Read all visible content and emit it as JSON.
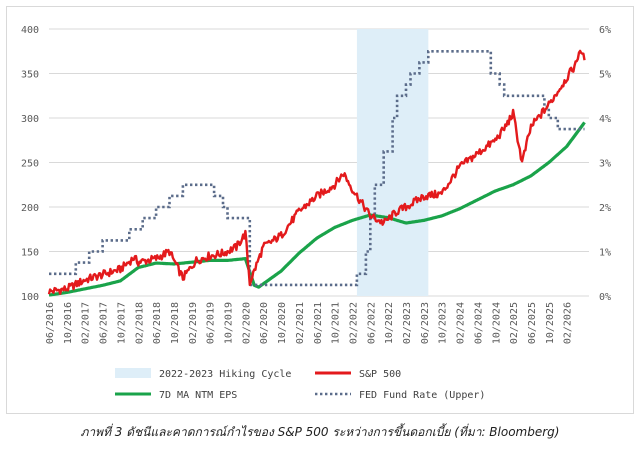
{
  "caption": "ภาพที่ 3 ดัชนีและคาดการณ์กำไรของ S&P 500 ระหว่างการขึ้นดอกเบี้ย (ที่มา: Bloomberg)",
  "chart_data": {
    "type": "line",
    "left_axis": {
      "ticks": [
        "100",
        "150",
        "200",
        "250",
        "300",
        "350",
        "400"
      ],
      "range": [
        100,
        400
      ]
    },
    "right_axis": {
      "ticks": [
        "0%",
        "1%",
        "2%",
        "3%",
        "4%",
        "5%",
        "6%"
      ],
      "range": [
        0,
        6
      ]
    },
    "x_ticks": [
      "06/2016",
      "10/2016",
      "02/2017",
      "06/2017",
      "10/2017",
      "02/2018",
      "06/2018",
      "10/2018",
      "02/2019",
      "06/2019",
      "10/2019",
      "02/2020",
      "06/2020",
      "10/2020",
      "02/2021",
      "06/2021",
      "10/2021",
      "02/2022",
      "06/2022",
      "10/2022",
      "02/2023",
      "06/2023",
      "10/2023",
      "02/2024",
      "06/2024",
      "10/2024",
      "02/2025",
      "06/2025",
      "10/2025",
      "02/2026"
    ],
    "shaded_region": {
      "label": "2022-2023 Hiking Cycle",
      "start": "03/2022",
      "end": "07/2023",
      "color": "#deeef8"
    },
    "series": [
      {
        "name": "S&P 500",
        "axis": "left",
        "color": "#e31a1c",
        "x": [
          "06/2016",
          "10/2016",
          "02/2017",
          "06/2017",
          "10/2017",
          "01/2018",
          "02/2018",
          "06/2018",
          "09/2018",
          "12/2018",
          "03/2019",
          "06/2019",
          "09/2019",
          "12/2019",
          "02/2020",
          "03/2020",
          "06/2020",
          "10/2020",
          "02/2021",
          "06/2021",
          "10/2021",
          "12/2021",
          "02/2022",
          "06/2022",
          "09/2022",
          "12/2022",
          "02/2023",
          "06/2023",
          "10/2023",
          "12/2023",
          "02/2024",
          "06/2024",
          "10/2024",
          "12/2024",
          "02/2025",
          "04/2025",
          "06/2025",
          "10/2025",
          "12/2025",
          "02/2026",
          "04/2026",
          "05/2026",
          "06/2026"
        ],
        "values": [
          105,
          108,
          118,
          124,
          130,
          143,
          138,
          142,
          150,
          120,
          140,
          145,
          148,
          155,
          170,
          115,
          155,
          168,
          195,
          212,
          225,
          238,
          220,
          190,
          182,
          195,
          200,
          212,
          215,
          230,
          245,
          260,
          275,
          288,
          305,
          250,
          290,
          315,
          330,
          345,
          360,
          378,
          365
        ]
      },
      {
        "name": "7D MA NTM EPS",
        "axis": "left",
        "color": "#1aa34a",
        "x": [
          "06/2016",
          "10/2016",
          "02/2017",
          "06/2017",
          "10/2017",
          "02/2018",
          "06/2018",
          "10/2018",
          "02/2019",
          "06/2019",
          "10/2019",
          "02/2020",
          "04/2020",
          "05/2020",
          "10/2020",
          "02/2021",
          "06/2021",
          "10/2021",
          "02/2022",
          "06/2022",
          "10/2022",
          "02/2023",
          "06/2023",
          "10/2023",
          "02/2024",
          "06/2024",
          "10/2024",
          "02/2025",
          "06/2025",
          "10/2025",
          "02/2026",
          "06/2026"
        ],
        "values": [
          101,
          104,
          108,
          112,
          117,
          132,
          137,
          136,
          138,
          140,
          140,
          142,
          112,
          110,
          128,
          148,
          165,
          177,
          185,
          191,
          188,
          182,
          185,
          190,
          198,
          208,
          218,
          225,
          235,
          250,
          268,
          295
        ]
      },
      {
        "name": "FED Fund Rate (Upper)",
        "axis": "right",
        "color": "#5b6c8a",
        "x": [
          "06/2016",
          "12/2016",
          "03/2017",
          "06/2017",
          "12/2017",
          "03/2018",
          "06/2018",
          "09/2018",
          "12/2018",
          "07/2019",
          "09/2019",
          "10/2019",
          "03/2020",
          "04/2020",
          "03/2022",
          "05/2022",
          "06/2022",
          "07/2022",
          "09/2022",
          "11/2022",
          "12/2022",
          "02/2023",
          "03/2023",
          "05/2023",
          "07/2023",
          "09/2024",
          "11/2024",
          "12/2024",
          "09/2025",
          "10/2025",
          "12/2025",
          "06/2026"
        ],
        "values": [
          0.5,
          0.75,
          1.0,
          1.25,
          1.5,
          1.75,
          2.0,
          2.25,
          2.5,
          2.25,
          2.0,
          1.75,
          0.25,
          0.25,
          0.5,
          1.0,
          1.75,
          2.5,
          3.25,
          4.0,
          4.5,
          4.75,
          5.0,
          5.25,
          5.5,
          5.0,
          4.75,
          4.5,
          4.25,
          4.0,
          3.75,
          3.75
        ]
      }
    ],
    "legend": [
      "2022-2023 Hiking Cycle",
      "S&P 500",
      "7D MA NTM EPS",
      "FED Fund Rate (Upper)"
    ],
    "legend_position": "bottom"
  }
}
